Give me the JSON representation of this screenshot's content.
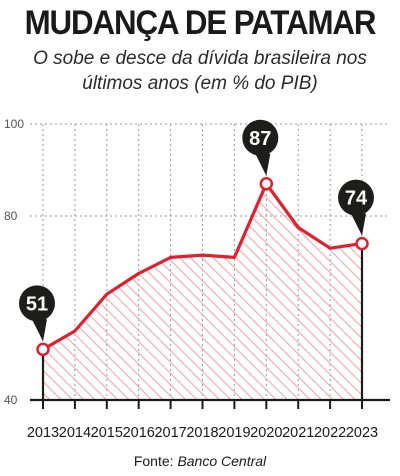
{
  "title": "MUDANÇA DE PATAMAR",
  "subtitle_line1": "O sobe e desce da dívida brasileira nos",
  "subtitle_line2": "últimos anos (em % do PIB)",
  "source_label": "Fonte:",
  "source_name": "Banco Central",
  "colors": {
    "line": "#e0202e",
    "hatch": "#f0a8ad",
    "callout": "#1d1d1b",
    "grid": "#9a9a9a",
    "axis": "#1a1a1a"
  },
  "chart_data": {
    "type": "area",
    "title": "MUDANÇA DE PATAMAR",
    "x": [
      "2013",
      "2014",
      "2015",
      "2016",
      "2017",
      "2018",
      "2019",
      "2020",
      "2021",
      "2022",
      "2023"
    ],
    "series": [
      {
        "values": [
          51,
          55,
          63,
          67.5,
          71,
          71.5,
          71,
          87,
          77.5,
          73,
          74
        ]
      }
    ],
    "ylim": [
      40,
      100
    ],
    "yticks": [
      40,
      80,
      100
    ],
    "grid": true,
    "callouts": [
      {
        "index": 0,
        "label": "51"
      },
      {
        "index": 7,
        "label": "87"
      },
      {
        "index": 10,
        "label": "74"
      }
    ]
  }
}
